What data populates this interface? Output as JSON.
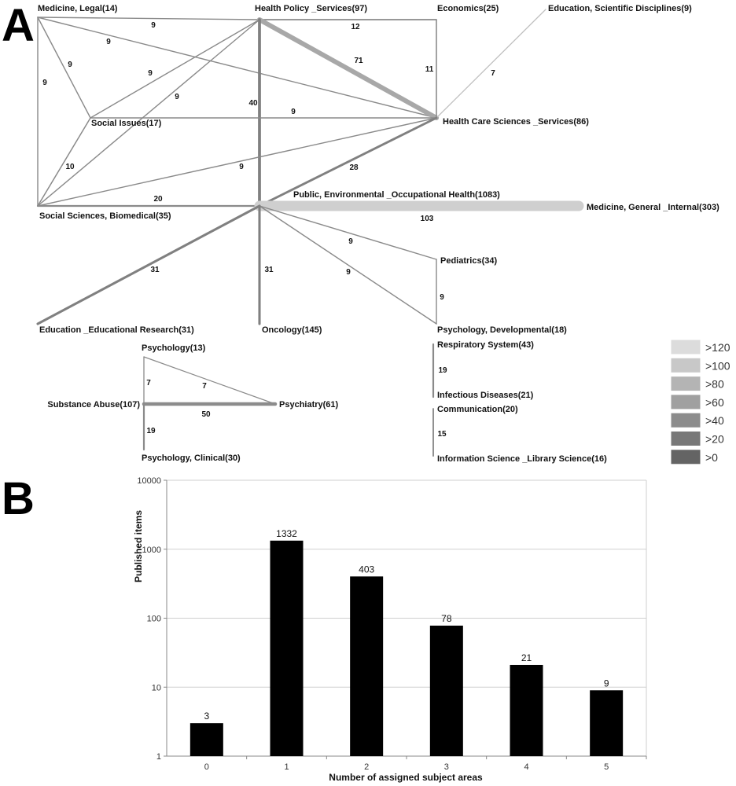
{
  "panels": {
    "a": "A",
    "b": "B"
  },
  "network": {
    "nodes": [
      {
        "id": "medlegal",
        "label": "Medicine, Legal(14)"
      },
      {
        "id": "hps",
        "label": "Health Policy _Services(97)"
      },
      {
        "id": "econ",
        "label": "Economics(25)"
      },
      {
        "id": "edusci",
        "label": "Education, Scientific Disciplines(9)"
      },
      {
        "id": "social",
        "label": "Social Issues(17)"
      },
      {
        "id": "hcss",
        "label": "Health Care Sciences _Services(86)"
      },
      {
        "id": "ssbio",
        "label": "Social Sciences, Biomedical(35)"
      },
      {
        "id": "peoh",
        "label": "Public, Environmental _Occupational Health(1083)"
      },
      {
        "id": "medgen",
        "label": "Medicine, General _Internal(303)"
      },
      {
        "id": "peds",
        "label": "Pediatrics(34)"
      },
      {
        "id": "eduer",
        "label": "Education _Educational Research(31)"
      },
      {
        "id": "onc",
        "label": "Oncology(145)"
      },
      {
        "id": "psydev",
        "label": "Psychology, Developmental(18)"
      },
      {
        "id": "psy",
        "label": "Psychology(13)"
      },
      {
        "id": "subab",
        "label": "Substance Abuse(107)"
      },
      {
        "id": "psych",
        "label": "Psychiatry(61)"
      },
      {
        "id": "psyclin",
        "label": "Psychology, Clinical(30)"
      },
      {
        "id": "resp",
        "label": "Respiratory System(43)"
      },
      {
        "id": "infect",
        "label": "Infectious Diseases(21)"
      },
      {
        "id": "comm",
        "label": "Communication(20)"
      },
      {
        "id": "infosci",
        "label": "Information Science _Library Science(16)"
      }
    ],
    "edges": [
      {
        "source": "medlegal",
        "target": "hps",
        "weight": 9
      },
      {
        "source": "medlegal",
        "target": "hcss",
        "weight": 9
      },
      {
        "source": "medlegal",
        "target": "social",
        "weight": 9
      },
      {
        "source": "medlegal",
        "target": "ssbio",
        "weight": 9
      },
      {
        "source": "hps",
        "target": "econ",
        "weight": 12
      },
      {
        "source": "hps",
        "target": "hcss",
        "weight": 71
      },
      {
        "source": "hps",
        "target": "social",
        "weight": 9
      },
      {
        "source": "hps",
        "target": "ssbio",
        "weight": 9
      },
      {
        "source": "hps",
        "target": "peoh",
        "weight": 40
      },
      {
        "source": "econ",
        "target": "hcss",
        "weight": 11
      },
      {
        "source": "edusci",
        "target": "hcss",
        "weight": 7
      },
      {
        "source": "social",
        "target": "hcss",
        "weight": 9
      },
      {
        "source": "ssbio",
        "target": "social",
        "weight": 10
      },
      {
        "source": "ssbio",
        "target": "hcss",
        "weight": 9
      },
      {
        "source": "ssbio",
        "target": "peoh",
        "weight": 20
      },
      {
        "source": "peoh",
        "target": "hcss",
        "weight": 28
      },
      {
        "source": "peoh",
        "target": "medgen",
        "weight": 103
      },
      {
        "source": "peoh",
        "target": "peds",
        "weight": 9
      },
      {
        "source": "peoh",
        "target": "psydev",
        "weight": 9
      },
      {
        "source": "peoh",
        "target": "eduer",
        "weight": 31
      },
      {
        "source": "peoh",
        "target": "onc",
        "weight": 31
      },
      {
        "source": "peds",
        "target": "psydev",
        "weight": 9
      },
      {
        "source": "psy",
        "target": "subab",
        "weight": 7
      },
      {
        "source": "psy",
        "target": "psych",
        "weight": 7
      },
      {
        "source": "subab",
        "target": "psych",
        "weight": 50
      },
      {
        "source": "subab",
        "target": "psyclin",
        "weight": 19
      },
      {
        "source": "resp",
        "target": "infect",
        "weight": 19
      },
      {
        "source": "comm",
        "target": "infosci",
        "weight": 15
      }
    ],
    "legend": {
      "placement": "right",
      "items": [
        {
          "label": ">120",
          "color": "#dcdcdc"
        },
        {
          "label": ">100",
          "color": "#c8c8c8"
        },
        {
          "label": ">80",
          "color": "#b4b4b4"
        },
        {
          "label": ">60",
          "color": "#a0a0a0"
        },
        {
          "label": ">40",
          "color": "#8c8c8c"
        },
        {
          "label": ">20",
          "color": "#787878"
        },
        {
          "label": ">0",
          "color": "#646464"
        }
      ]
    }
  },
  "chart_data": {
    "type": "bar",
    "categories": [
      "0",
      "1",
      "2",
      "3",
      "4",
      "5"
    ],
    "values": [
      3,
      1332,
      403,
      78,
      21,
      9
    ],
    "data_labels": [
      "3",
      "1332",
      "403",
      "78",
      "21",
      "9"
    ],
    "xlabel": "Number of assigned subject areas",
    "ylabel": "Published items",
    "yscale": "log",
    "ylim": [
      1,
      10000
    ],
    "yticks": [
      "1",
      "10",
      "100",
      "1000",
      "10000"
    ],
    "grid": true,
    "bar_color": "#000000"
  }
}
